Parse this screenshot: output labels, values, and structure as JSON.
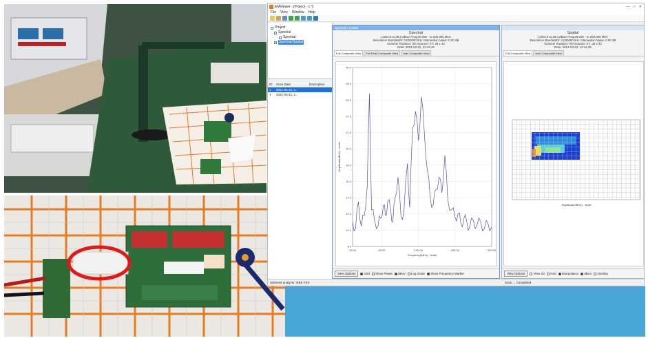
{
  "window": {
    "title": "EMViewer - [Project - 1 *]",
    "controls": [
      "—",
      "□",
      "✕"
    ]
  },
  "menu": [
    "File",
    "View",
    "Window",
    "Help"
  ],
  "toolbar": {
    "buttons": [
      "new-icon",
      "open-icon",
      "save-icon",
      "run-icon",
      "stop-icon",
      "settings-icon",
      "zoom-icon",
      "help-icon"
    ]
  },
  "project_tree": {
    "root": "Project",
    "child": "Spectral",
    "leaf": "Spectral",
    "selected": "Spectral/Spatial"
  },
  "scan_list": {
    "headers": [
      "ID",
      "Scan Date",
      "Description"
    ],
    "rows": [
      {
        "id": "1",
        "date": "2021-03-22, 1..."
      },
      {
        "id": "1",
        "date": "2021-03-22, 1..."
      }
    ]
  },
  "spectral_view": {
    "doc_title": "Spectral / Spatial",
    "header": "Spectral",
    "info_lines": [
      "Limits:0  to 29.0 dBuV  Freq:20.000 - to 200.000 MHz",
      "Resolution Bandwidth: 0.000000 kHz     Attenuation Value:  0.00 dB",
      "Scanner Rotation: 0/0  Scanner XY: 28 x 42",
      "Date: 2021-03-22, 12:44:25"
    ],
    "tabs": [
      "Full Composite View",
      "Full Peak Composite View",
      "User Composite View"
    ],
    "options_button": "View Options",
    "checks": [
      {
        "label": "Grid",
        "on": true
      },
      {
        "label": "Show Peaks",
        "on": false
      },
      {
        "label": "dBuV",
        "on": true
      },
      {
        "label": "Log Scale",
        "on": false
      },
      {
        "label": "Show Frequency Marker",
        "on": true
      }
    ]
  },
  "spatial_view": {
    "doc_title": "",
    "header": "Spatial",
    "info_lines": [
      "Limits:0  to 29.0 dBuV  Freq:20.000 - to 200.000 MHz",
      "Resolution Bandwidth: 0.000000 kHz     Attenuation Value:  0.00 dB",
      "Scanner Rotation: 0/0  Scanner XY: 28 x 42",
      "Date: 2021-03-22, 12:44:25"
    ],
    "tabs": [
      "Full Composite View",
      "User Composite View"
    ],
    "options_button": "View Options",
    "checks": [
      {
        "label": "View 3D",
        "on": false
      },
      {
        "label": "Grid",
        "on": false
      },
      {
        "label": "Interpolation",
        "on": true
      },
      {
        "label": "dBuV",
        "on": true
      },
      {
        "label": "Overlay",
        "on": false
      }
    ],
    "x_label": "Amplitude(dBuV) - scale"
  },
  "status": {
    "left": "Selected analyzer: R&S FSV",
    "right": "Scan ...  Completed"
  },
  "chart_data": {
    "type": "line",
    "title": "",
    "xlabel": "Frequency(MHz) - scale",
    "ylabel": "Amplitude(dBuV) - scale",
    "xlim": [
      10,
      200
    ],
    "ylim": [
      8,
      30
    ],
    "x_ticks": [
      "10.00",
      "50.00",
      "100.00",
      "150.00",
      "200.00"
    ],
    "y_ticks": [
      "30.0",
      "28.0",
      "26.0",
      "24.0",
      "22.0",
      "20.0",
      "18.0",
      "16.0",
      "14.0",
      "12.0",
      "10.0",
      "8.0"
    ],
    "series": [
      {
        "color": "#4b4fc0",
        "x": [
          10,
          14,
          18,
          22,
          26,
          30,
          33,
          36,
          40,
          45,
          48,
          52,
          55,
          58,
          62,
          65,
          68,
          72,
          76,
          80,
          85,
          88,
          92,
          96,
          100,
          104,
          108,
          112,
          116,
          120,
          124,
          128,
          132,
          136,
          140,
          145,
          150,
          154,
          158,
          162,
          166,
          170,
          175,
          180,
          185,
          190,
          195,
          200
        ],
        "values": [
          11.0,
          10.2,
          13.5,
          10.5,
          11.8,
          15.5,
          26.8,
          12.5,
          11.2,
          10.6,
          11.5,
          13.0,
          11.8,
          13.5,
          12.6,
          11.0,
          14.0,
          16.5,
          11.8,
          12.2,
          18.2,
          12.8,
          22.6,
          24.6,
          21.0,
          26.4,
          22.0,
          17.5,
          14.0,
          13.0,
          15.0,
          16.5,
          14.6,
          19.2,
          13.8,
          12.5,
          11.6,
          12.0,
          10.8,
          11.4,
          11.0,
          10.4,
          11.2,
          10.6,
          11.0,
          10.2,
          10.8,
          10.4
        ]
      }
    ],
    "grid": true
  },
  "heatmap_data": {
    "type": "heatmap",
    "grid": true,
    "color_scale": [
      "#1a3fd8",
      "#2a8ee0",
      "#4fd2e0",
      "#8ee39a",
      "#f2e05a",
      "#f08a2a",
      "#d02a1a"
    ]
  }
}
